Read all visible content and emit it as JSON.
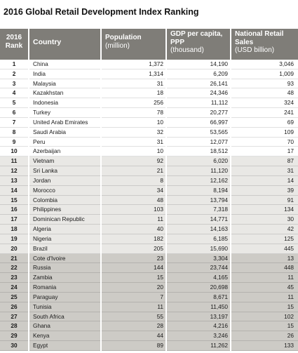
{
  "title": "2016 Global Retail Development Index Ranking",
  "headers": {
    "rank": [
      "2016",
      "Rank"
    ],
    "country": "Country",
    "population": [
      "Population",
      "(million)"
    ],
    "gdp": [
      "GDP per capita,",
      "PPP",
      "(thousand)"
    ],
    "sales": [
      "National Retail",
      "Sales",
      "(USD billion)"
    ]
  },
  "colors": {
    "header": "#7f7d78",
    "group1": "#ffffff",
    "group2": "#e9e8e5",
    "group3": "#cdcbc6"
  },
  "rows": [
    {
      "rank": "1",
      "country": "China",
      "population": "1,372",
      "gdp": "14,190",
      "sales": "3,046"
    },
    {
      "rank": "2",
      "country": "India",
      "population": "1,314",
      "gdp": "6,209",
      "sales": "1,009"
    },
    {
      "rank": "3",
      "country": "Malaysia",
      "population": "31",
      "gdp": "26,141",
      "sales": "93"
    },
    {
      "rank": "4",
      "country": "Kazakhstan",
      "population": "18",
      "gdp": "24,346",
      "sales": "48"
    },
    {
      "rank": "5",
      "country": "Indonesia",
      "population": "256",
      "gdp": "11,112",
      "sales": "324"
    },
    {
      "rank": "6",
      "country": "Turkey",
      "population": "78",
      "gdp": "20,277",
      "sales": "241"
    },
    {
      "rank": "7",
      "country": "United Arab Emirates",
      "population": "10",
      "gdp": "66,997",
      "sales": "69"
    },
    {
      "rank": "8",
      "country": "Saudi Arabia",
      "population": "32",
      "gdp": "53,565",
      "sales": "109"
    },
    {
      "rank": "9",
      "country": "Peru",
      "population": "31",
      "gdp": "12,077",
      "sales": "70"
    },
    {
      "rank": "10",
      "country": "Azerbaijan",
      "population": "10",
      "gdp": "18,512",
      "sales": "17"
    },
    {
      "rank": "11",
      "country": "Vietnam",
      "population": "92",
      "gdp": "6,020",
      "sales": "87"
    },
    {
      "rank": "12",
      "country": "Sri Lanka",
      "population": "21",
      "gdp": "11,120",
      "sales": "31"
    },
    {
      "rank": "13",
      "country": "Jordan",
      "population": "8",
      "gdp": "12,162",
      "sales": "14"
    },
    {
      "rank": "14",
      "country": "Morocco",
      "population": "34",
      "gdp": "8,194",
      "sales": "39"
    },
    {
      "rank": "15",
      "country": "Colombia",
      "population": "48",
      "gdp": "13,794",
      "sales": "91"
    },
    {
      "rank": "16",
      "country": "Philippines",
      "population": "103",
      "gdp": "7,318",
      "sales": "134"
    },
    {
      "rank": "17",
      "country": "Dominican Republic",
      "population": "11",
      "gdp": "14,771",
      "sales": "30"
    },
    {
      "rank": "18",
      "country": "Algeria",
      "population": "40",
      "gdp": "14,163",
      "sales": "42"
    },
    {
      "rank": "19",
      "country": "Nigeria",
      "population": "182",
      "gdp": "6,185",
      "sales": "125"
    },
    {
      "rank": "20",
      "country": "Brazil",
      "population": "205",
      "gdp": "15,690",
      "sales": "445"
    },
    {
      "rank": "21",
      "country": "Cote d'Ivoire",
      "population": "23",
      "gdp": "3,304",
      "sales": "13"
    },
    {
      "rank": "22",
      "country": "Russia",
      "population": "144",
      "gdp": "23,744",
      "sales": "448"
    },
    {
      "rank": "23",
      "country": "Zambia",
      "population": "15",
      "gdp": "4,165",
      "sales": "11"
    },
    {
      "rank": "24",
      "country": "Romania",
      "population": "20",
      "gdp": "20,698",
      "sales": "45"
    },
    {
      "rank": "25",
      "country": "Paraguay",
      "population": "7",
      "gdp": "8,671",
      "sales": "11"
    },
    {
      "rank": "26",
      "country": "Tunisia",
      "population": "11",
      "gdp": "11,450",
      "sales": "15"
    },
    {
      "rank": "27",
      "country": "South Africa",
      "population": "55",
      "gdp": "13,197",
      "sales": "102"
    },
    {
      "rank": "28",
      "country": "Ghana",
      "population": "28",
      "gdp": "4,216",
      "sales": "15"
    },
    {
      "rank": "29",
      "country": "Kenya",
      "population": "44",
      "gdp": "3,246",
      "sales": "26"
    },
    {
      "rank": "30",
      "country": "Egypt",
      "population": "89",
      "gdp": "11,262",
      "sales": "133"
    }
  ]
}
